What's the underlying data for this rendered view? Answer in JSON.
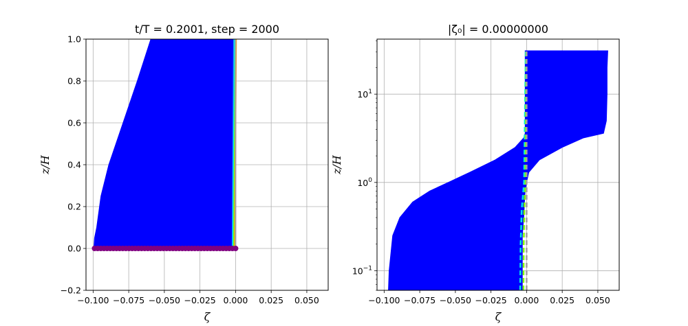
{
  "chart_data": [
    {
      "type": "line",
      "title": "t/T = 0.2001, step = 2000",
      "xlabel": "ζ",
      "ylabel": "z/H",
      "xlim": [
        -0.105,
        0.065
      ],
      "ylim": [
        -0.2,
        1.0
      ],
      "xticks": [
        -0.1,
        -0.075,
        -0.05,
        -0.025,
        0.0,
        0.025,
        0.05
      ],
      "xtick_labels": [
        "−0.100",
        "−0.075",
        "−0.050",
        "−0.025",
        "0.000",
        "0.025",
        "0.050"
      ],
      "yticks": [
        -0.2,
        0.0,
        0.2,
        0.4,
        0.6,
        0.8,
        1.0
      ],
      "ytick_labels": [
        "−0.2",
        "0.0",
        "0.2",
        "0.4",
        "0.6",
        "0.8",
        "1.0"
      ],
      "grid": true,
      "blue_envelope": {
        "z": [
          0.0,
          0.05,
          0.1,
          0.25,
          0.4,
          0.6,
          0.8,
          1.0
        ],
        "x_left": [
          -0.0995,
          -0.099,
          -0.0975,
          -0.0945,
          -0.089,
          -0.079,
          -0.069,
          -0.0595
        ],
        "x_right": [
          -0.0015,
          -0.0015,
          -0.0015,
          -0.0015,
          -0.0015,
          -0.0015,
          -0.0015,
          -0.0015
        ],
        "color": "#0000ff"
      },
      "profiles": [
        {
          "x_bottom": -0.0022,
          "x_top": -0.0012,
          "color": "#1e90ff"
        },
        {
          "x_bottom": -0.0018,
          "x_top": -0.0006,
          "color": "#00e5e5"
        },
        {
          "x_bottom": -0.0012,
          "x_top": 0.0,
          "color": "#7fff00"
        },
        {
          "x_bottom": -0.0006,
          "x_top": 0.0004,
          "color": "#ffa500"
        },
        {
          "x_bottom": 0.0,
          "x_top": 0.0,
          "color": "#a0a0a0"
        }
      ],
      "bottom_markers": {
        "z": 0.0,
        "x_start": -0.099,
        "x_end": 0.0,
        "count": 46,
        "color": "#800080"
      }
    },
    {
      "type": "line",
      "title": "|ζ₀| = 0.00000000",
      "xlabel": "ζ",
      "ylabel": "z/H",
      "yscale": "log",
      "xlim": [
        -0.105,
        0.065
      ],
      "ylim": [
        0.06,
        42
      ],
      "xticks": [
        -0.1,
        -0.075,
        -0.05,
        -0.025,
        0.0,
        0.025,
        0.05
      ],
      "xtick_labels": [
        "−0.100",
        "−0.075",
        "−0.050",
        "−0.025",
        "0.000",
        "0.025",
        "0.050"
      ],
      "yticks": [
        0.1,
        1,
        10
      ],
      "grid": true,
      "blue_envelope": {
        "z": [
          0.06,
          0.1,
          0.25,
          0.4,
          0.6,
          0.8,
          1.0,
          1.3,
          1.8,
          2.5,
          3.2,
          3.6,
          5,
          10,
          20,
          31
        ],
        "x_left": [
          -0.097,
          -0.0965,
          -0.094,
          -0.089,
          -0.08,
          -0.068,
          -0.055,
          -0.04,
          -0.022,
          -0.008,
          -0.002,
          -0.001,
          -0.001,
          -0.001,
          -0.001,
          -0.001
        ],
        "x_right": [
          -0.003,
          -0.003,
          -0.003,
          -0.002,
          -0.0015,
          -0.001,
          0.0,
          0.0015,
          0.009,
          0.025,
          0.04,
          0.054,
          0.056,
          0.0565,
          0.0565,
          0.057
        ],
        "top_z": 31,
        "color": "#0000ff"
      },
      "profiles": [
        {
          "z": [
            0.06,
            0.2,
            0.5,
            1.0,
            31
          ],
          "x": [
            -0.0045,
            -0.0042,
            -0.0034,
            -0.0018,
            -0.0006
          ],
          "color": "#00e5e5",
          "style": "dashed"
        },
        {
          "z": [
            0.06,
            0.2,
            0.5,
            1.0,
            31
          ],
          "x": [
            -0.0022,
            -0.002,
            -0.0016,
            -0.0008,
            -0.0002
          ],
          "color": "#7fff00",
          "style": "dashed"
        },
        {
          "z": [
            0.06,
            31
          ],
          "x": [
            0.0,
            0.0
          ],
          "color": "#a0a0a0",
          "style": "dashed"
        }
      ]
    }
  ]
}
